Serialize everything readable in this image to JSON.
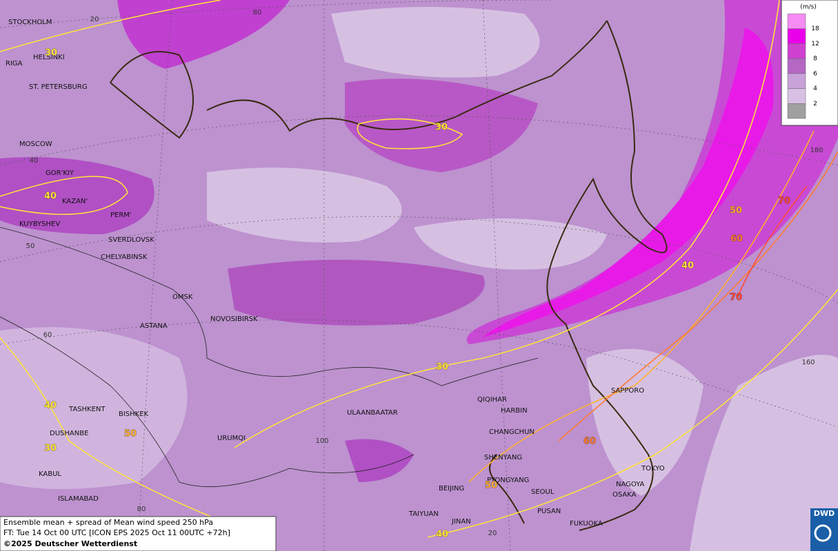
{
  "map": {
    "cities": [
      "STOCKHOLM",
      "HELSINKI",
      "RIGA",
      "ST. PETERSBURG",
      "MOSCOW",
      "GOR'KIY",
      "KAZAN'",
      "KUYBYSHEV",
      "PERM'",
      "SVERDLOVSK",
      "CHELYABINSK",
      "OMSK",
      "ASTANA",
      "NOVOSIBIRSK",
      "TASHKENT",
      "BISHKEK",
      "DUSHANBE",
      "URUMQI",
      "KABUL",
      "ISLAMABAD",
      "ULAANBAATAR",
      "QIQIHAR",
      "HARBIN",
      "CHANGCHUN",
      "SHENYANG",
      "PYONGYANG",
      "SEOUL",
      "BEIJING",
      "TAIYUAN",
      "JINAN",
      "PUSAN",
      "FUKUOKA",
      "NAGOYA",
      "OSAKA",
      "TOKYO",
      "SAPPORO"
    ],
    "grid_labels": [
      20,
      80,
      40,
      50,
      60,
      180,
      160,
      100,
      80,
      20
    ],
    "contour_labels": [
      {
        "value": 30,
        "color": "#ffe23a"
      },
      {
        "value": 40,
        "color": "#ffe23a"
      },
      {
        "value": 30,
        "color": "#ffe23a"
      },
      {
        "value": 50,
        "color": "#ffb030"
      },
      {
        "value": 70,
        "color": "#ff4a3a"
      },
      {
        "value": 60,
        "color": "#ff7a30"
      },
      {
        "value": 40,
        "color": "#ffe23a"
      },
      {
        "value": 70,
        "color": "#ff4a3a"
      },
      {
        "value": 30,
        "color": "#ffe23a"
      },
      {
        "value": 40,
        "color": "#ffe23a"
      },
      {
        "value": 50,
        "color": "#ffb030"
      },
      {
        "value": 30,
        "color": "#ffe23a"
      },
      {
        "value": 60,
        "color": "#ff7a30"
      },
      {
        "value": 50,
        "color": "#ffb030"
      },
      {
        "value": 40,
        "color": "#ffe23a"
      }
    ]
  },
  "legend": {
    "unit": "(m/s)",
    "levels": [
      18,
      12,
      8,
      6,
      4,
      2
    ],
    "colors": [
      "#f68cf4",
      "#ea00ea",
      "#d040d0",
      "#b468c4",
      "#c8a2d8",
      "#d8c0e4",
      "#a0a0a0"
    ]
  },
  "caption": {
    "line1": "Ensemble mean + spread of Mean wind speed 250 hPa",
    "line2": "FT: Tue 14 Oct 00 UTC [ICON EPS 2025 Oct 11 00UTC +72h]",
    "copyright": "©2025 Deutscher Wetterdienst"
  },
  "logo": "DWD"
}
